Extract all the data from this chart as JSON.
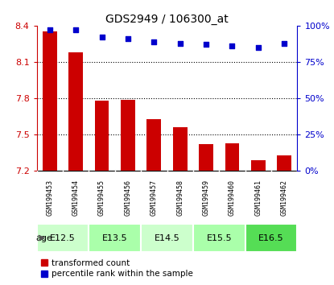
{
  "title": "GDS2949 / 106300_at",
  "samples": [
    "GSM199453",
    "GSM199454",
    "GSM199455",
    "GSM199456",
    "GSM199457",
    "GSM199458",
    "GSM199459",
    "GSM199460",
    "GSM199461",
    "GSM199462"
  ],
  "bar_values": [
    8.35,
    8.18,
    7.78,
    7.79,
    7.63,
    7.56,
    7.42,
    7.43,
    7.29,
    7.33
  ],
  "scatter_values": [
    97,
    97,
    92,
    91,
    89,
    88,
    87,
    86,
    85,
    88
  ],
  "bar_color": "#cc0000",
  "scatter_color": "#0000cc",
  "ylim_left": [
    7.2,
    8.4
  ],
  "ylim_right": [
    0,
    100
  ],
  "yticks_left": [
    7.2,
    7.5,
    7.8,
    8.1,
    8.4
  ],
  "yticks_right": [
    0,
    25,
    50,
    75,
    100
  ],
  "age_groups": [
    {
      "label": "E12.5",
      "start": 0,
      "end": 2,
      "color": "#ccffcc"
    },
    {
      "label": "E13.5",
      "start": 2,
      "end": 4,
      "color": "#aaffaa"
    },
    {
      "label": "E14.5",
      "start": 4,
      "end": 6,
      "color": "#ccffcc"
    },
    {
      "label": "E15.5",
      "start": 6,
      "end": 8,
      "color": "#aaffaa"
    },
    {
      "label": "E16.5",
      "start": 8,
      "end": 10,
      "color": "#55dd55"
    }
  ],
  "sample_bg_color": "#cccccc",
  "legend_bar_label": "transformed count",
  "legend_scatter_label": "percentile rank within the sample",
  "grid_color": "#000000",
  "age_label": "age"
}
